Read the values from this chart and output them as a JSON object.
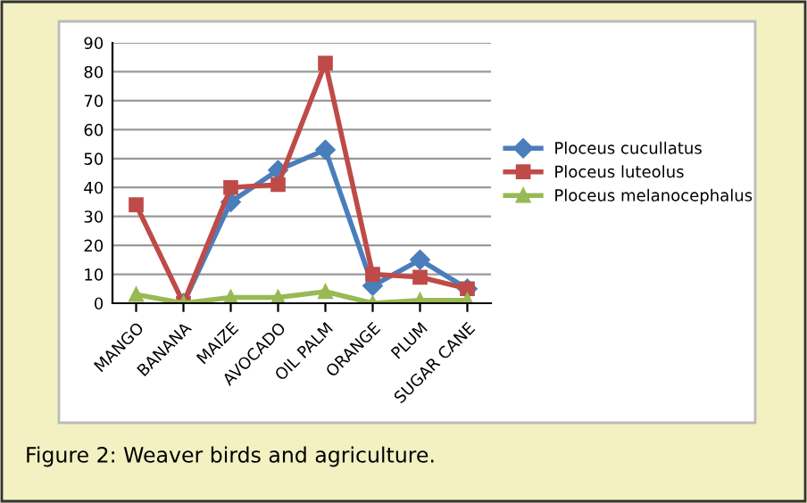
{
  "chart_data": {
    "type": "line",
    "categories": [
      "MANGO",
      "BANANA",
      "MAIZE",
      "AVOCADO",
      "OIL PALM",
      "ORANGE",
      "PLUM",
      "SUGAR CANE"
    ],
    "series": [
      {
        "name": "Ploceus cucullatus",
        "color": "#4a7ebb",
        "marker": "diamond",
        "values": [
          null,
          0,
          35,
          46,
          53,
          6,
          15,
          5
        ]
      },
      {
        "name": "Ploceus luteolus",
        "color": "#be4b48",
        "marker": "square",
        "values": [
          34,
          0,
          40,
          41,
          83,
          10,
          9,
          5
        ]
      },
      {
        "name": "Ploceus melanocephalus",
        "color": "#98b954",
        "marker": "triangle",
        "values": [
          3,
          0,
          2,
          2,
          4,
          0,
          1,
          1
        ]
      }
    ],
    "ylim": [
      0,
      90
    ],
    "yticks": [
      0,
      10,
      20,
      30,
      40,
      50,
      60,
      70,
      80,
      90
    ],
    "grid": "y",
    "legend": "right",
    "annotations": [
      "Figure 2: Weaver birds and agriculture."
    ]
  }
}
